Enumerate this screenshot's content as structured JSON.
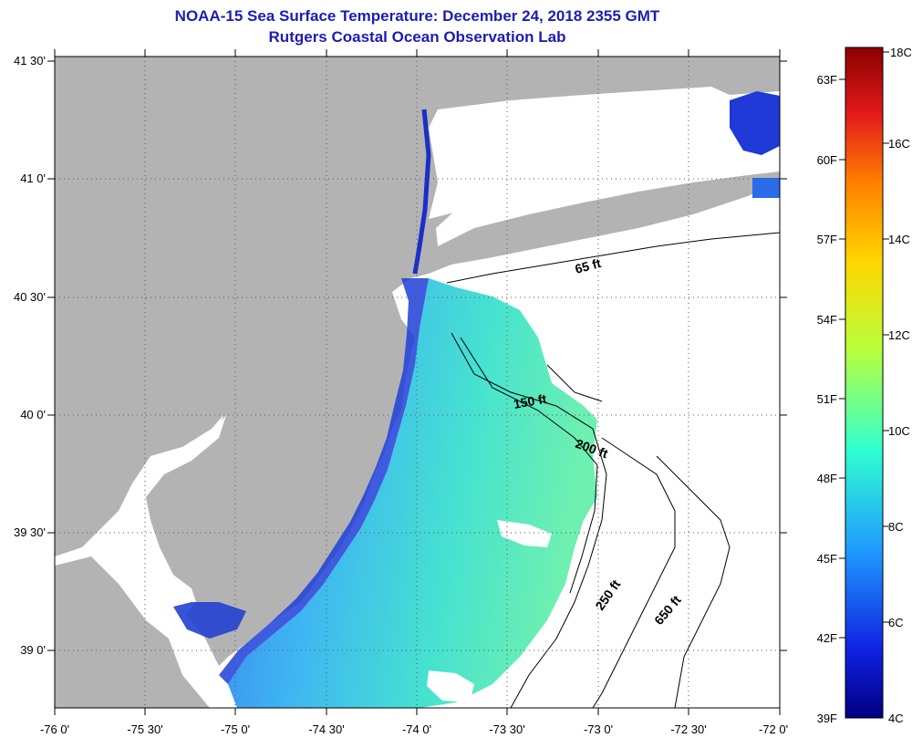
{
  "title": "NOAA-15 Sea Surface Temperature:  December 24, 2018 2355 GMT",
  "subtitle": "Rutgers Coastal Ocean Observation Lab",
  "lat_labels": [
    "41 30'",
    "41 0'",
    "40 30'",
    "40 0'",
    "39 30'",
    "39 0'"
  ],
  "lon_labels": [
    "-76 0'",
    "-75 30'",
    "-75 0'",
    "-74 30'",
    "-74 0'",
    "-73 30'",
    "-73 0'",
    "-72 30'",
    "-72 0'"
  ],
  "isobath_labels": [
    "65 ft",
    "150 ft",
    "200 ft",
    "250 ft",
    "650 ft"
  ],
  "colorbar": {
    "fahrenheit": [
      "63F",
      "60F",
      "57F",
      "54F",
      "51F",
      "48F",
      "45F",
      "42F",
      "39F"
    ],
    "celsius": [
      "18C",
      "16C",
      "14C",
      "12C",
      "10C",
      "8C",
      "6C",
      "4C"
    ],
    "colors": [
      "#8b0000",
      "#e31a1c",
      "#ff7f00",
      "#ffd700",
      "#b8ff3a",
      "#30ffd0",
      "#1f9bff",
      "#1020e0",
      "#000080"
    ]
  },
  "colors": {
    "land": "#b3b3b3",
    "title": "#1d1db3"
  }
}
